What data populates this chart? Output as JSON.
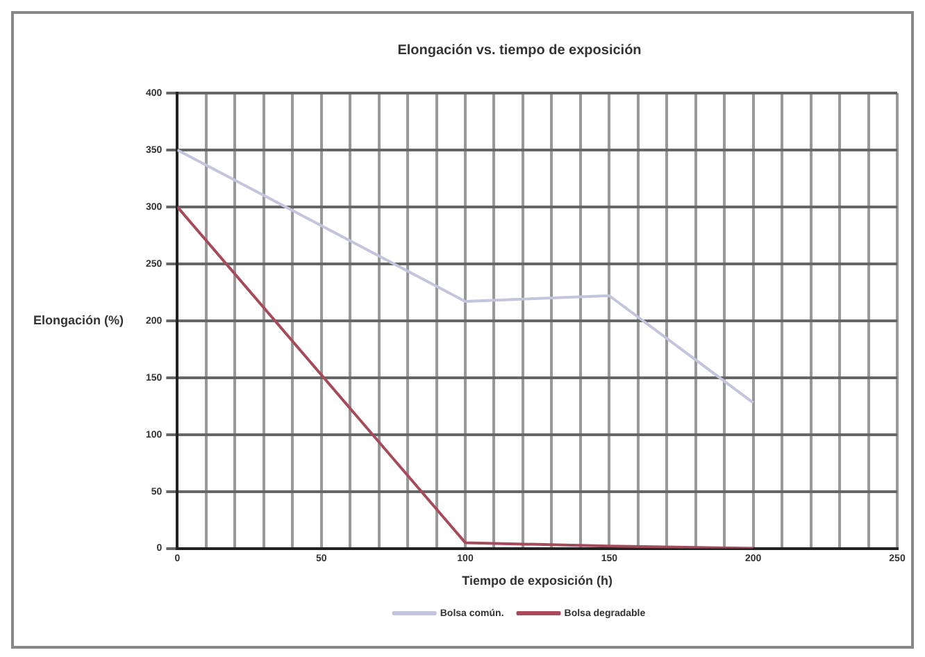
{
  "chart_data": {
    "type": "line",
    "title": "Elongación vs. tiempo de exposición",
    "xlabel": "Tiempo de exposición (h)",
    "ylabel": "Elongación (%)",
    "x": [
      0,
      100,
      150,
      200
    ],
    "series": [
      {
        "name": "Bolsa común.",
        "color": "#c4c4dc",
        "values": [
          350,
          217,
          222,
          128
        ]
      },
      {
        "name": "Bolsa degradable",
        "color": "#a44c5c",
        "values": [
          300,
          5,
          2,
          0
        ]
      }
    ],
    "xlim": [
      0,
      250
    ],
    "xticks": [
      0,
      {
        "value": 10,
        "label": null
      },
      {
        "value": 20,
        "label": null
      },
      {
        "value": 30,
        "label": null
      },
      {
        "value": 40,
        "label": null
      },
      50,
      {
        "value": 60,
        "label": null
      },
      {
        "value": 70,
        "label": null
      },
      {
        "value": 80,
        "label": null
      },
      {
        "value": 90,
        "label": null
      },
      100,
      {
        "value": 110,
        "label": null
      },
      {
        "value": 120,
        "label": null
      },
      {
        "value": 130,
        "label": null
      },
      {
        "value": 140,
        "label": null
      },
      150,
      {
        "value": 160,
        "label": null
      },
      {
        "value": 170,
        "label": null
      },
      {
        "value": 180,
        "label": null
      },
      {
        "value": 190,
        "label": null
      },
      200,
      {
        "value": 210,
        "label": null
      },
      {
        "value": 220,
        "label": null
      },
      {
        "value": 230,
        "label": null
      },
      {
        "value": 240,
        "label": null
      },
      250
    ],
    "ylim": [
      0,
      400
    ],
    "yticks": [
      0,
      50,
      100,
      150,
      200,
      250,
      300,
      350,
      400
    ],
    "grid": true,
    "legend": "bottom",
    "marker": "none",
    "line_style": "solid"
  }
}
